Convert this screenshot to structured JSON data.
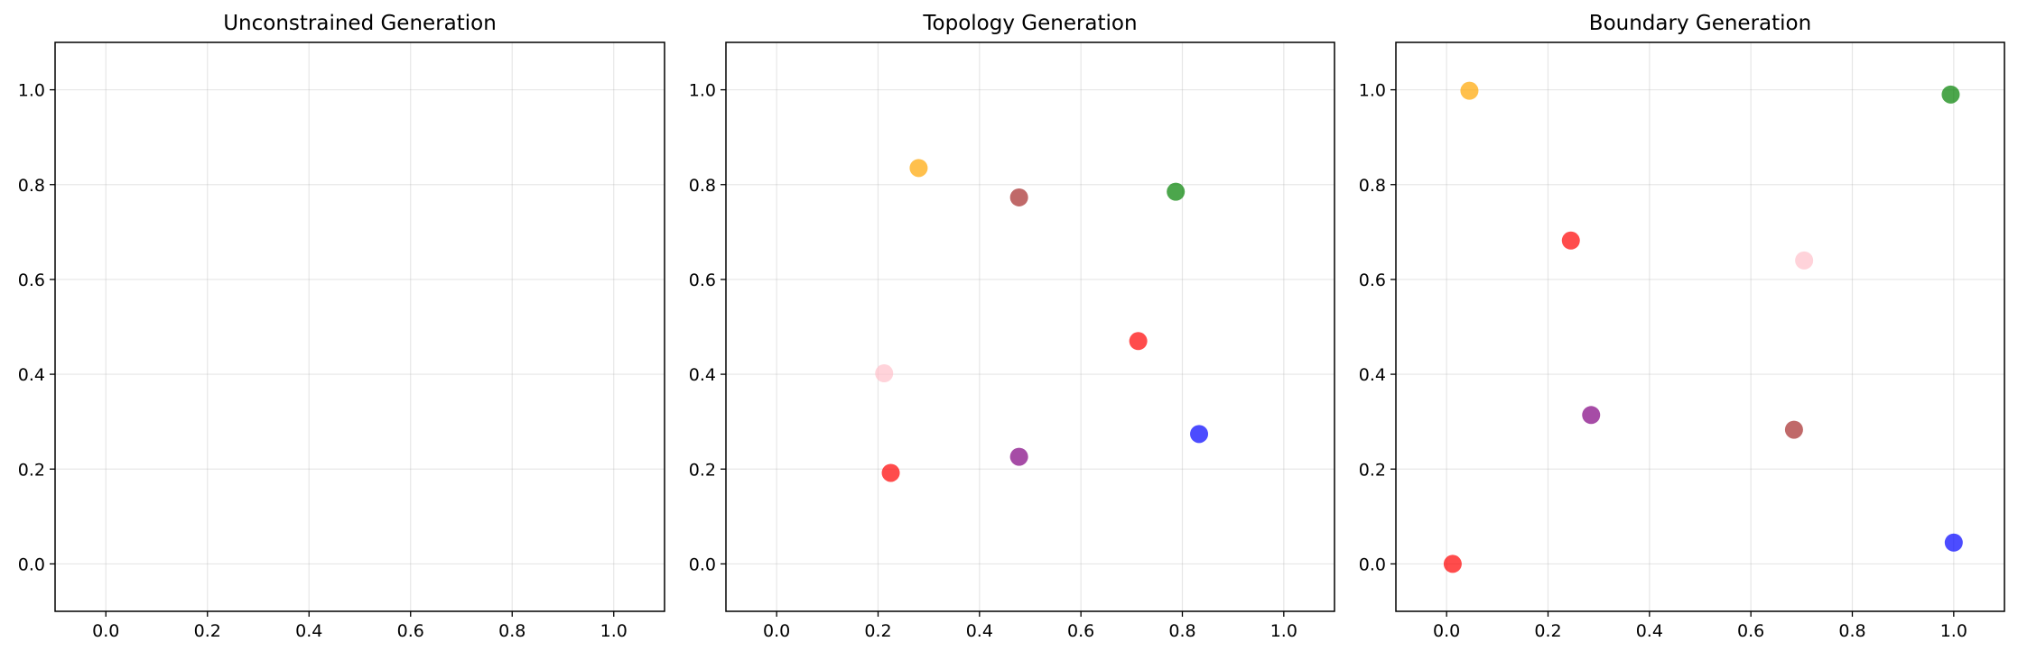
{
  "chart_data": [
    {
      "type": "scatter",
      "title": "Unconstrained Generation",
      "xlim": [
        -0.1,
        1.1
      ],
      "ylim": [
        -0.1,
        1.1
      ],
      "xticks": [
        "0.0",
        "0.2",
        "0.4",
        "0.6",
        "0.8",
        "1.0"
      ],
      "yticks": [
        "0.0",
        "0.2",
        "0.4",
        "0.6",
        "0.8",
        "1.0"
      ],
      "grid": true,
      "points": []
    },
    {
      "type": "scatter",
      "title": "Topology Generation",
      "xlim": [
        -0.1,
        1.1
      ],
      "ylim": [
        -0.1,
        1.1
      ],
      "xticks": [
        "0.0",
        "0.2",
        "0.4",
        "0.6",
        "0.8",
        "1.0"
      ],
      "yticks": [
        "0.0",
        "0.2",
        "0.4",
        "0.6",
        "0.8",
        "1.0"
      ],
      "grid": true,
      "points": [
        {
          "x": 0.28,
          "y": 0.835,
          "color": "#FFA500"
        },
        {
          "x": 0.478,
          "y": 0.773,
          "color": "#A52A2A"
        },
        {
          "x": 0.787,
          "y": 0.785,
          "color": "#008000"
        },
        {
          "x": 0.713,
          "y": 0.47,
          "color": "#FF0000"
        },
        {
          "x": 0.212,
          "y": 0.402,
          "color": "#FFC0CB"
        },
        {
          "x": 0.833,
          "y": 0.274,
          "color": "#0000FF"
        },
        {
          "x": 0.478,
          "y": 0.226,
          "color": "#800080"
        },
        {
          "x": 0.225,
          "y": 0.192,
          "color": "#FF0000"
        }
      ]
    },
    {
      "type": "scatter",
      "title": "Boundary Generation",
      "xlim": [
        -0.1,
        1.1
      ],
      "ylim": [
        -0.1,
        1.1
      ],
      "xticks": [
        "0.0",
        "0.2",
        "0.4",
        "0.6",
        "0.8",
        "1.0"
      ],
      "yticks": [
        "0.0",
        "0.2",
        "0.4",
        "0.6",
        "0.8",
        "1.0"
      ],
      "grid": true,
      "points": [
        {
          "x": 0.045,
          "y": 0.998,
          "color": "#FFA500"
        },
        {
          "x": 0.994,
          "y": 0.99,
          "color": "#008000"
        },
        {
          "x": 0.245,
          "y": 0.682,
          "color": "#FF0000"
        },
        {
          "x": 0.705,
          "y": 0.64,
          "color": "#FFC0CB"
        },
        {
          "x": 0.285,
          "y": 0.314,
          "color": "#800080"
        },
        {
          "x": 0.685,
          "y": 0.283,
          "color": "#A52A2A"
        },
        {
          "x": 0.012,
          "y": 0.0,
          "color": "#FF0000"
        },
        {
          "x": 1.0,
          "y": 0.045,
          "color": "#0000FF"
        }
      ]
    }
  ]
}
